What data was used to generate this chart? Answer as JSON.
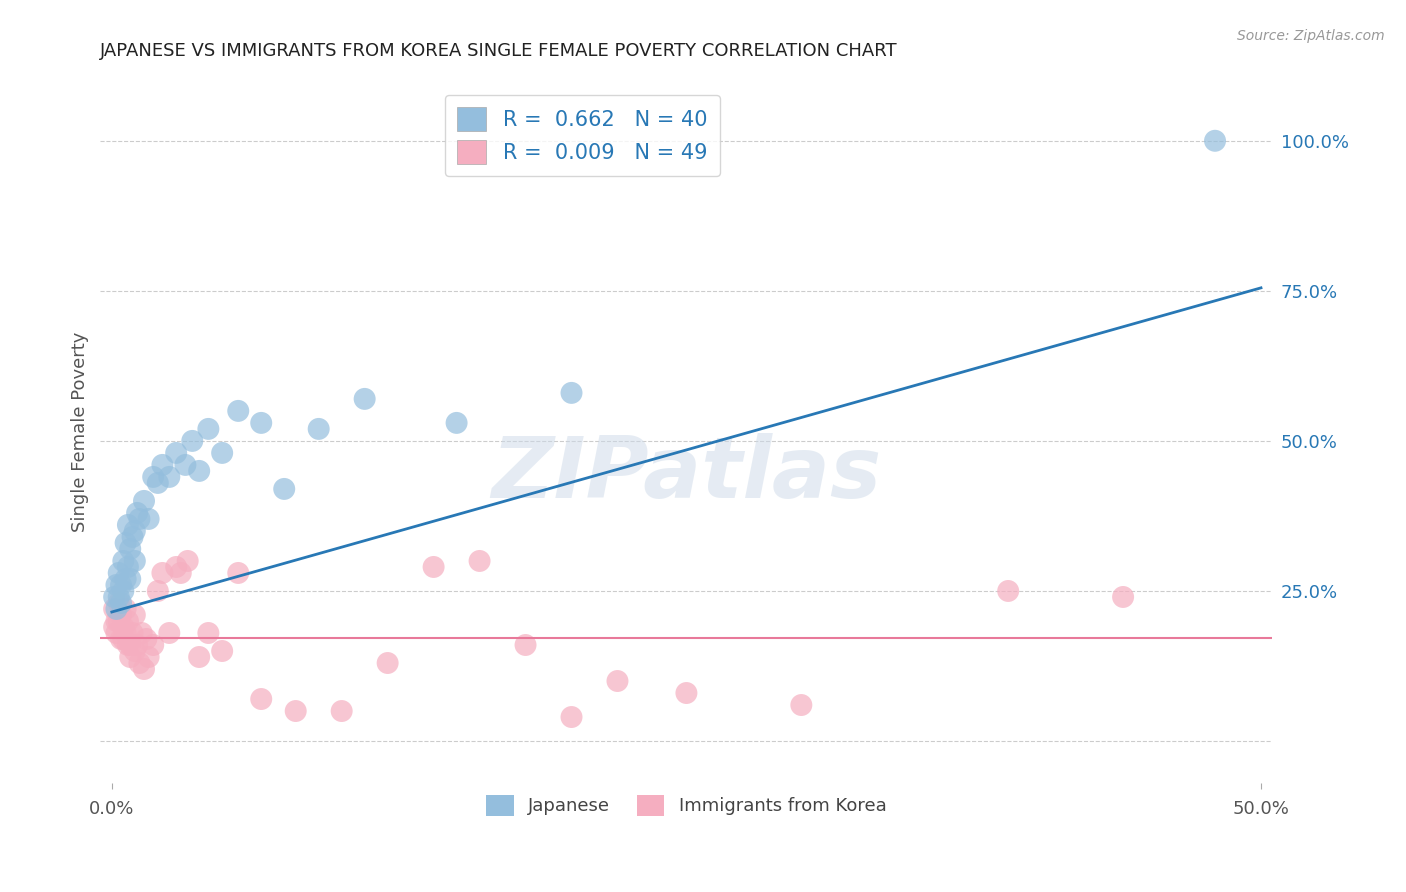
{
  "title": "JAPANESE VS IMMIGRANTS FROM KOREA SINGLE FEMALE POVERTY CORRELATION CHART",
  "source": "Source: ZipAtlas.com",
  "ylabel": "Single Female Poverty",
  "right_ytick_positions": [
    0.0,
    0.25,
    0.5,
    0.75,
    1.0
  ],
  "right_ytick_labels": [
    "",
    "25.0%",
    "50.0%",
    "75.0%",
    "100.0%"
  ],
  "xlim": [
    -0.005,
    0.505
  ],
  "ylim": [
    -0.07,
    1.1
  ],
  "legend1_label": "R =  0.662   N = 40",
  "legend2_label": "R =  0.009   N = 49",
  "legend_bottom_label1": "Japanese",
  "legend_bottom_label2": "Immigrants from Korea",
  "watermark": "ZIPatlas",
  "blue_color": "#94bedd",
  "pink_color": "#f5aec0",
  "line_blue": "#2878b5",
  "line_pink": "#e8799a",
  "japanese_x": [
    0.001,
    0.002,
    0.002,
    0.003,
    0.003,
    0.004,
    0.004,
    0.005,
    0.005,
    0.006,
    0.006,
    0.007,
    0.007,
    0.008,
    0.008,
    0.009,
    0.01,
    0.01,
    0.011,
    0.012,
    0.014,
    0.016,
    0.018,
    0.02,
    0.022,
    0.025,
    0.028,
    0.032,
    0.035,
    0.038,
    0.042,
    0.048,
    0.055,
    0.065,
    0.075,
    0.09,
    0.11,
    0.15,
    0.2,
    0.48
  ],
  "japanese_y": [
    0.24,
    0.26,
    0.22,
    0.28,
    0.24,
    0.26,
    0.23,
    0.25,
    0.3,
    0.27,
    0.33,
    0.29,
    0.36,
    0.32,
    0.27,
    0.34,
    0.3,
    0.35,
    0.38,
    0.37,
    0.4,
    0.37,
    0.44,
    0.43,
    0.46,
    0.44,
    0.48,
    0.46,
    0.5,
    0.45,
    0.52,
    0.48,
    0.55,
    0.53,
    0.42,
    0.52,
    0.57,
    0.53,
    0.58,
    1.0
  ],
  "korean_x": [
    0.001,
    0.001,
    0.002,
    0.002,
    0.003,
    0.003,
    0.004,
    0.004,
    0.005,
    0.005,
    0.006,
    0.006,
    0.007,
    0.007,
    0.008,
    0.008,
    0.009,
    0.01,
    0.01,
    0.011,
    0.012,
    0.013,
    0.014,
    0.015,
    0.016,
    0.018,
    0.02,
    0.022,
    0.025,
    0.028,
    0.03,
    0.033,
    0.038,
    0.042,
    0.048,
    0.055,
    0.065,
    0.08,
    0.1,
    0.12,
    0.14,
    0.16,
    0.18,
    0.2,
    0.22,
    0.25,
    0.3,
    0.39,
    0.44
  ],
  "korean_y": [
    0.19,
    0.22,
    0.2,
    0.18,
    0.23,
    0.2,
    0.17,
    0.21,
    0.19,
    0.17,
    0.22,
    0.18,
    0.16,
    0.2,
    0.16,
    0.14,
    0.18,
    0.15,
    0.21,
    0.16,
    0.13,
    0.18,
    0.12,
    0.17,
    0.14,
    0.16,
    0.25,
    0.28,
    0.18,
    0.29,
    0.28,
    0.3,
    0.14,
    0.18,
    0.15,
    0.28,
    0.07,
    0.05,
    0.05,
    0.13,
    0.29,
    0.3,
    0.16,
    0.04,
    0.1,
    0.08,
    0.06,
    0.25,
    0.24
  ],
  "blue_trend_x": [
    0.0,
    0.5
  ],
  "blue_trend_y": [
    0.215,
    0.755
  ],
  "pink_trend_y": 0.172,
  "background_color": "#ffffff",
  "grid_color": "#cccccc",
  "title_fontsize": 13,
  "axis_label_color": "#555555",
  "title_color": "#222222",
  "legend_text_color": "#2878b5"
}
